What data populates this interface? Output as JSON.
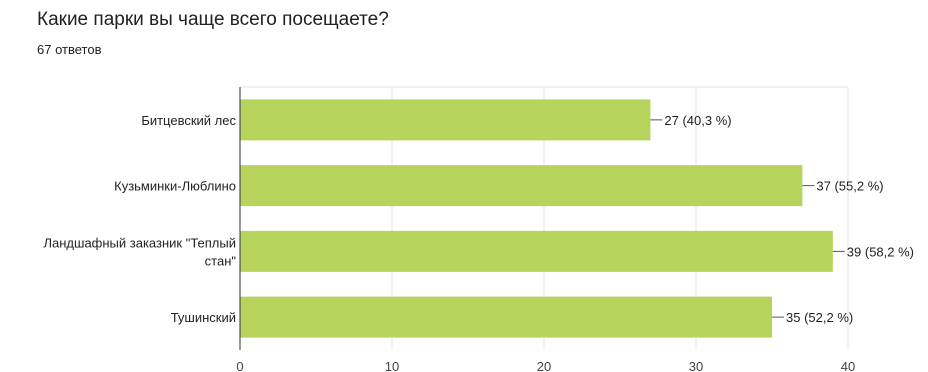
{
  "question": {
    "title": "Какие парки вы чаще всего посещаете?",
    "responses": "67 ответов"
  },
  "chart_data": {
    "type": "bar",
    "orientation": "horizontal",
    "categories": [
      [
        "Битцевский лес"
      ],
      [
        "Кузьминки-Люблино"
      ],
      [
        "Ландшафный заказник \"Теплый",
        "стан\""
      ],
      [
        "Тушинский"
      ]
    ],
    "values": [
      27,
      37,
      39,
      35
    ],
    "data_labels": [
      "27 (40,3 %)",
      "37 (55,2 %)",
      "39 (58,2 %)",
      "35 (52,2 %)"
    ],
    "xlim": [
      0,
      40
    ],
    "x_ticks": [
      0,
      10,
      20,
      30,
      40
    ],
    "grid": true,
    "bar_color": "#b6d35c"
  }
}
